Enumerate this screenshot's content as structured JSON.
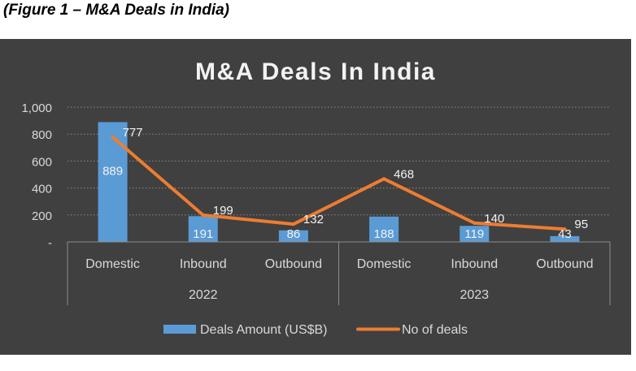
{
  "caption": "(Figure 1 – M&A Deals in India)",
  "chart_data": {
    "type": "bar",
    "title": "M&A Deals In India",
    "groups": [
      {
        "label": "2022",
        "categories": [
          "Domestic",
          "Inbound",
          "Outbound"
        ]
      },
      {
        "label": "2023",
        "categories": [
          "Domestic",
          "Inbound",
          "Outbound"
        ]
      }
    ],
    "categories": [
      "Domestic",
      "Inbound",
      "Outbound",
      "Domestic",
      "Inbound",
      "Outbound"
    ],
    "series": [
      {
        "name": "Deals Amount (US$B)",
        "type": "bar",
        "color": "#5b9bd5",
        "values": [
          889,
          191,
          86,
          188,
          119,
          43
        ]
      },
      {
        "name": "No of deals",
        "type": "line",
        "color": "#ed7d31",
        "values": [
          777,
          199,
          132,
          468,
          140,
          95
        ]
      }
    ],
    "yticks": [
      "-",
      "200",
      "400",
      "600",
      "800",
      "1,000"
    ],
    "ylim": [
      0,
      1000
    ],
    "grid": true,
    "legend": "bottom"
  }
}
